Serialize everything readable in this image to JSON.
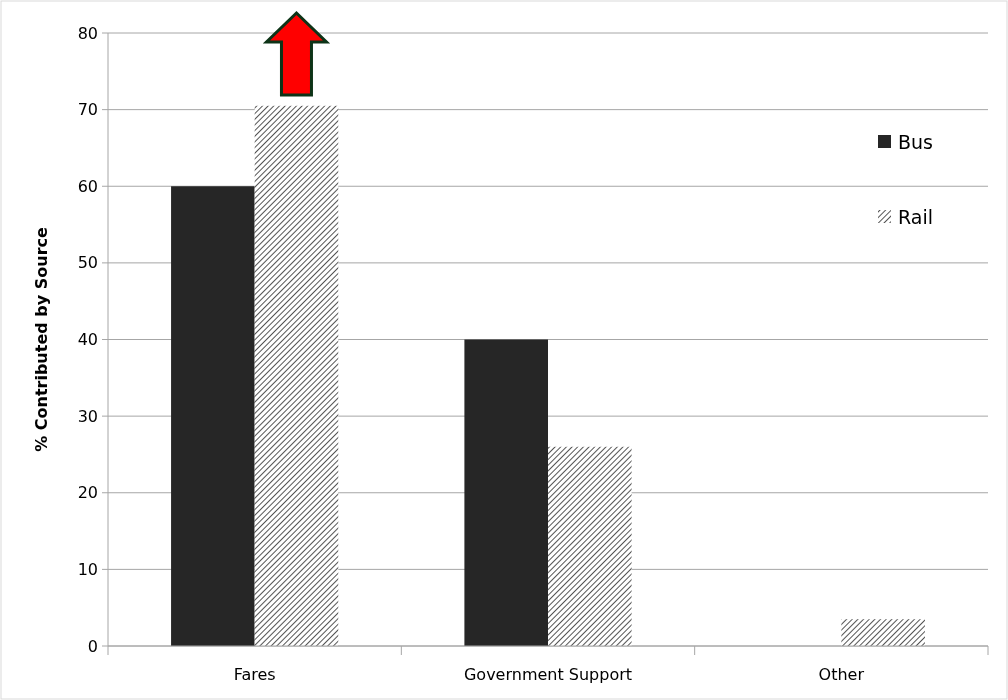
{
  "chart_data": {
    "type": "bar",
    "ylabel": "% Contributed by Source",
    "categories": [
      "Fares",
      "Government Support",
      "Other"
    ],
    "series": [
      {
        "name": "Bus",
        "color": "#262626",
        "values": [
          60,
          40,
          0
        ]
      },
      {
        "name": "Rail",
        "color": "#404040",
        "values": [
          70.5,
          26,
          3.5
        ]
      }
    ],
    "ylim": [
      0,
      80
    ],
    "yticks": [
      0,
      10,
      20,
      30,
      40,
      50,
      60,
      70,
      80
    ],
    "grid": "y",
    "legend": "top right"
  }
}
